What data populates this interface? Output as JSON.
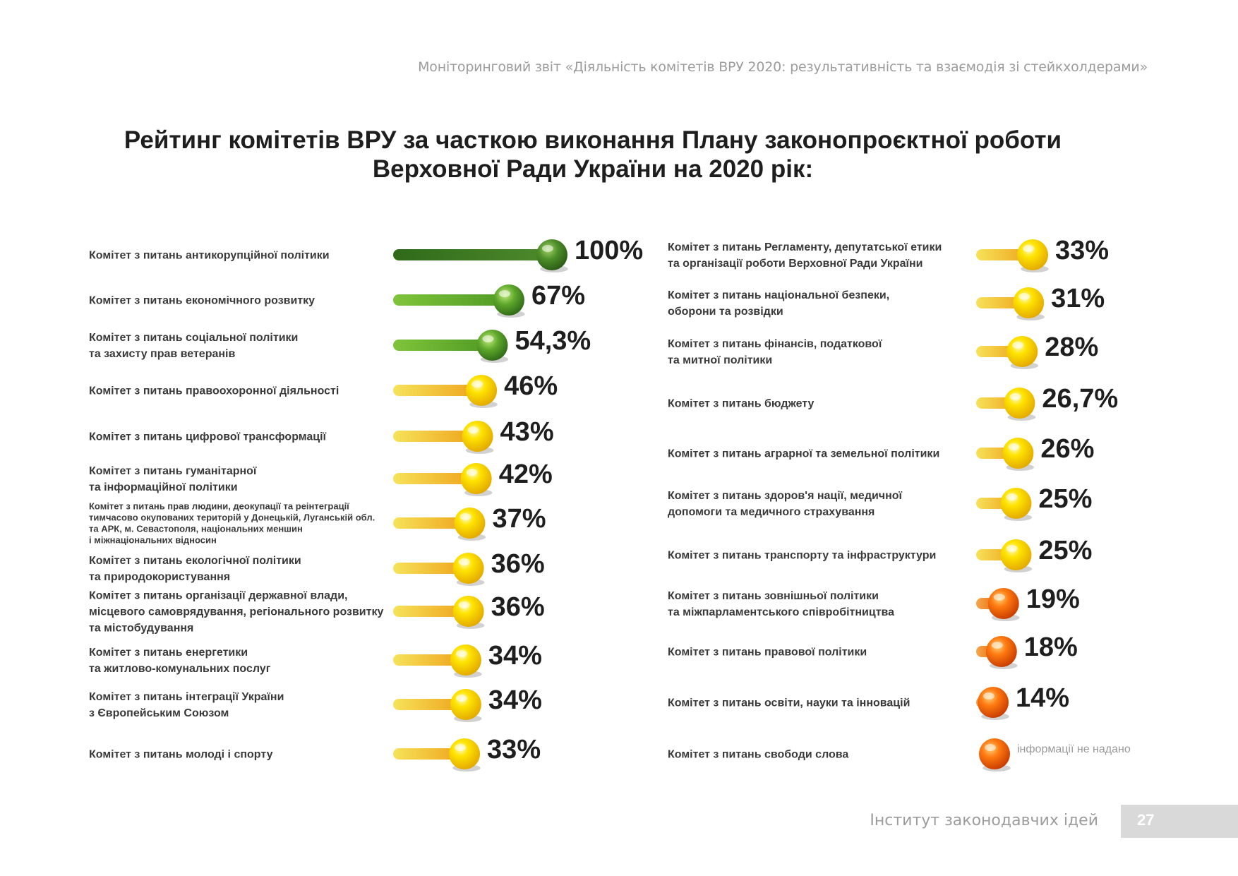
{
  "header": {
    "text": "Моніторинговий звіт «Діяльність комітетів ВРУ 2020: результативність та взаємодія зі стейкхолдерами»"
  },
  "footer": {
    "org": "Інститут законодавчих ідей",
    "page": "27"
  },
  "colors": {
    "green": "#4f8f2a",
    "yellow": "#f2d000",
    "orange": "#ef6a00"
  },
  "chart_data": {
    "type": "bar",
    "title": "Рейтинг комітетів ВРУ за часткою виконання Плану законопроєктної роботи Верховної Ради України на 2020 рік:",
    "title_lines": [
      "Рейтинг комітетів ВРУ за часткою виконання Плану законопроєктної роботи",
      "Верховної Ради України на 2020 рік:"
    ],
    "unit": "%",
    "columns": [
      {
        "items": [
          {
            "category": [
              "Комітет з питань антикорупційної політики"
            ],
            "value": 100,
            "label": "100%",
            "color": "dark-green"
          },
          {
            "category": [
              "Комітет з питань економічного розвитку"
            ],
            "value": 67,
            "label": "67%",
            "color": "green"
          },
          {
            "category": [
              "Комітет з питань соціальної політики",
              "та захисту прав ветеранів"
            ],
            "value": 54.3,
            "label": "54,3%",
            "color": "green"
          },
          {
            "category": [
              "Комітет з питань правоохоронної діяльності"
            ],
            "value": 46,
            "label": "46%",
            "color": "yellow"
          },
          {
            "category": [
              "Комітет з питань цифрової трансформації"
            ],
            "value": 43,
            "label": "43%",
            "color": "yellow"
          },
          {
            "category": [
              "Комітет з питань гуманітарної",
              "та інформаційної політики"
            ],
            "value": 42,
            "label": "42%",
            "color": "yellow"
          },
          {
            "category": [
              "Комітет з питань прав людини, деокупації та реінтеграції",
              "тимчасово окупованих територій у Донецькій, Луганській обл.",
              "та АРК, м. Севастополя, національних меншин",
              "і міжнаціональних відносин"
            ],
            "value": 37,
            "label": "37%",
            "color": "yellow",
            "small": true
          },
          {
            "category": [
              "Комітет з питань екологічної політики",
              "та природокористування"
            ],
            "value": 36,
            "label": "36%",
            "color": "yellow"
          },
          {
            "category": [
              "Комітет з питань організації державної влади,",
              "місцевого самоврядування, регіонального розвитку",
              "та містобудування"
            ],
            "value": 36,
            "label": "36%",
            "color": "yellow"
          },
          {
            "category": [
              "Комітет з питань енергетики",
              "та житлово-комунальних послуг"
            ],
            "value": 34,
            "label": "34%",
            "color": "yellow"
          },
          {
            "category": [
              "Комітет з питань інтеграції України",
              "з Європейським Союзом"
            ],
            "value": 34,
            "label": "34%",
            "color": "yellow"
          },
          {
            "category": [
              "Комітет з питань молоді і спорту"
            ],
            "value": 33,
            "label": "33%",
            "color": "yellow"
          }
        ]
      },
      {
        "items": [
          {
            "category": [
              "Комітет з питань Регламенту, депутатської етики",
              "та організації роботи Верховної Ради України"
            ],
            "value": 33,
            "label": "33%",
            "color": "yellow"
          },
          {
            "category": [
              "Комітет з питань національної безпеки,",
              "оборони та розвідки"
            ],
            "value": 31,
            "label": "31%",
            "color": "yellow"
          },
          {
            "category": [
              "Комітет з питань фінансів, податкової",
              "та митної політики"
            ],
            "value": 28,
            "label": "28%",
            "color": "yellow"
          },
          {
            "category": [
              "Комітет з питань бюджету"
            ],
            "value": 26.7,
            "label": "26,7%",
            "color": "yellow"
          },
          {
            "category": [
              "Комітет з питань аграрної та земельної політики"
            ],
            "value": 26,
            "label": "26%",
            "color": "yellow"
          },
          {
            "category": [
              "Комітет з питань здоров'я нації, медичної",
              "допомоги та медичного страхування"
            ],
            "value": 25,
            "label": "25%",
            "color": "yellow"
          },
          {
            "category": [
              "Комітет з питань транспорту та інфраструктури"
            ],
            "value": 25,
            "label": "25%",
            "color": "yellow"
          },
          {
            "category": [
              "Комітет з питань зовнішньої політики",
              "та міжпарламентського співробітництва"
            ],
            "value": 19,
            "label": "19%",
            "color": "orange"
          },
          {
            "category": [
              "Комітет з питань правової політики"
            ],
            "value": 18,
            "label": "18%",
            "color": "orange"
          },
          {
            "category": [
              "Комітет з питань освіти, науки та інновацій"
            ],
            "value": 14,
            "label": "14%",
            "color": "orange"
          },
          {
            "category": [
              "Комітет з питань свободи слова"
            ],
            "value": null,
            "label": "інформації не надано",
            "color": "orange",
            "no_data": true
          }
        ]
      }
    ]
  }
}
